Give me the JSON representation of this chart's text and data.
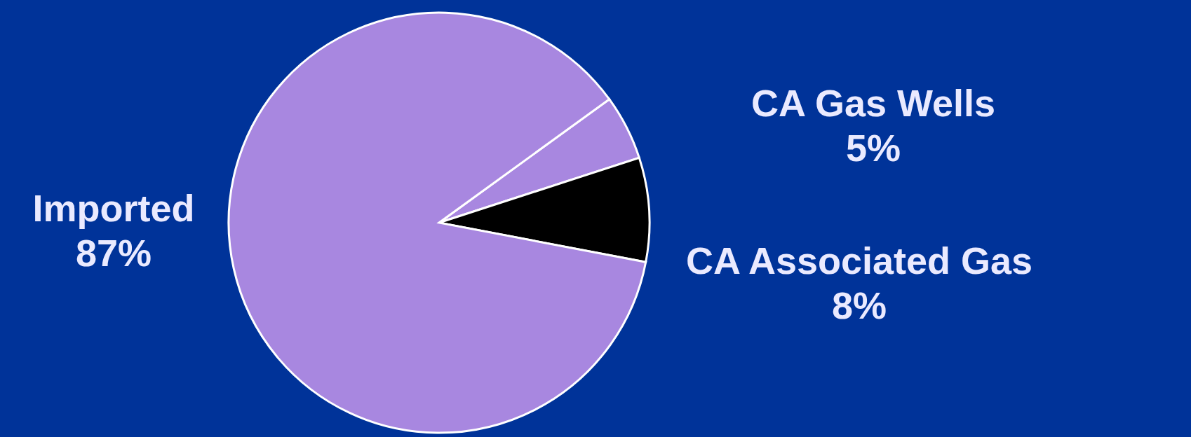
{
  "chart_data": {
    "type": "pie",
    "categories": [
      "CA Gas Wells",
      "CA Associated Gas",
      "Imported"
    ],
    "values": [
      5,
      8,
      87
    ],
    "colors": [
      "#a887e0",
      "#000000",
      "#a887e0"
    ],
    "value_labels": [
      "5%",
      "8%",
      "87%"
    ]
  }
}
